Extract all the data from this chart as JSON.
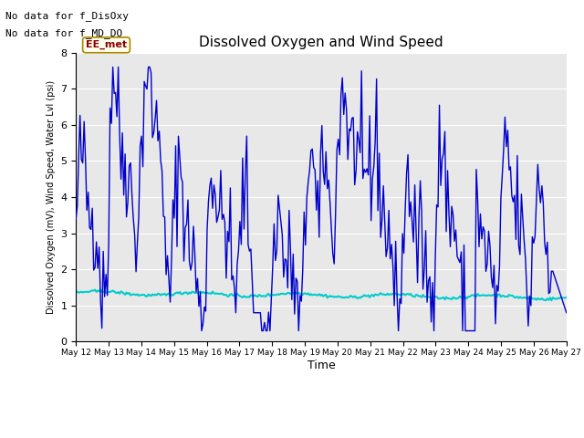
{
  "title": "Dissolved Oxygen and Wind Speed",
  "ylabel": "Dissolved Oxygen (mV), Wind Speed, Water Lvl (psi)",
  "xlabel": "Time",
  "ylim": [
    0.0,
    8.0
  ],
  "yticks": [
    0.0,
    1.0,
    2.0,
    3.0,
    4.0,
    5.0,
    6.0,
    7.0,
    8.0
  ],
  "xtick_labels": [
    "May 12",
    "May 13",
    "May 14",
    "May 15",
    "May 16",
    "May 17",
    "May 18",
    "May 19",
    "May 20",
    "May 21",
    "May 22",
    "May 23",
    "May 24",
    "May 25",
    "May 26",
    "May 27"
  ],
  "no_data_text1": "No data for f_DisOxy",
  "no_data_text2": "No data for f_MD_DO",
  "annotation_text": "EE_met",
  "bg_color": "#e8e8e8",
  "ws_color": "#0000cc",
  "water_color": "#00cccc",
  "ws_linewidth": 1.0,
  "water_linewidth": 1.5,
  "n_points": 360
}
